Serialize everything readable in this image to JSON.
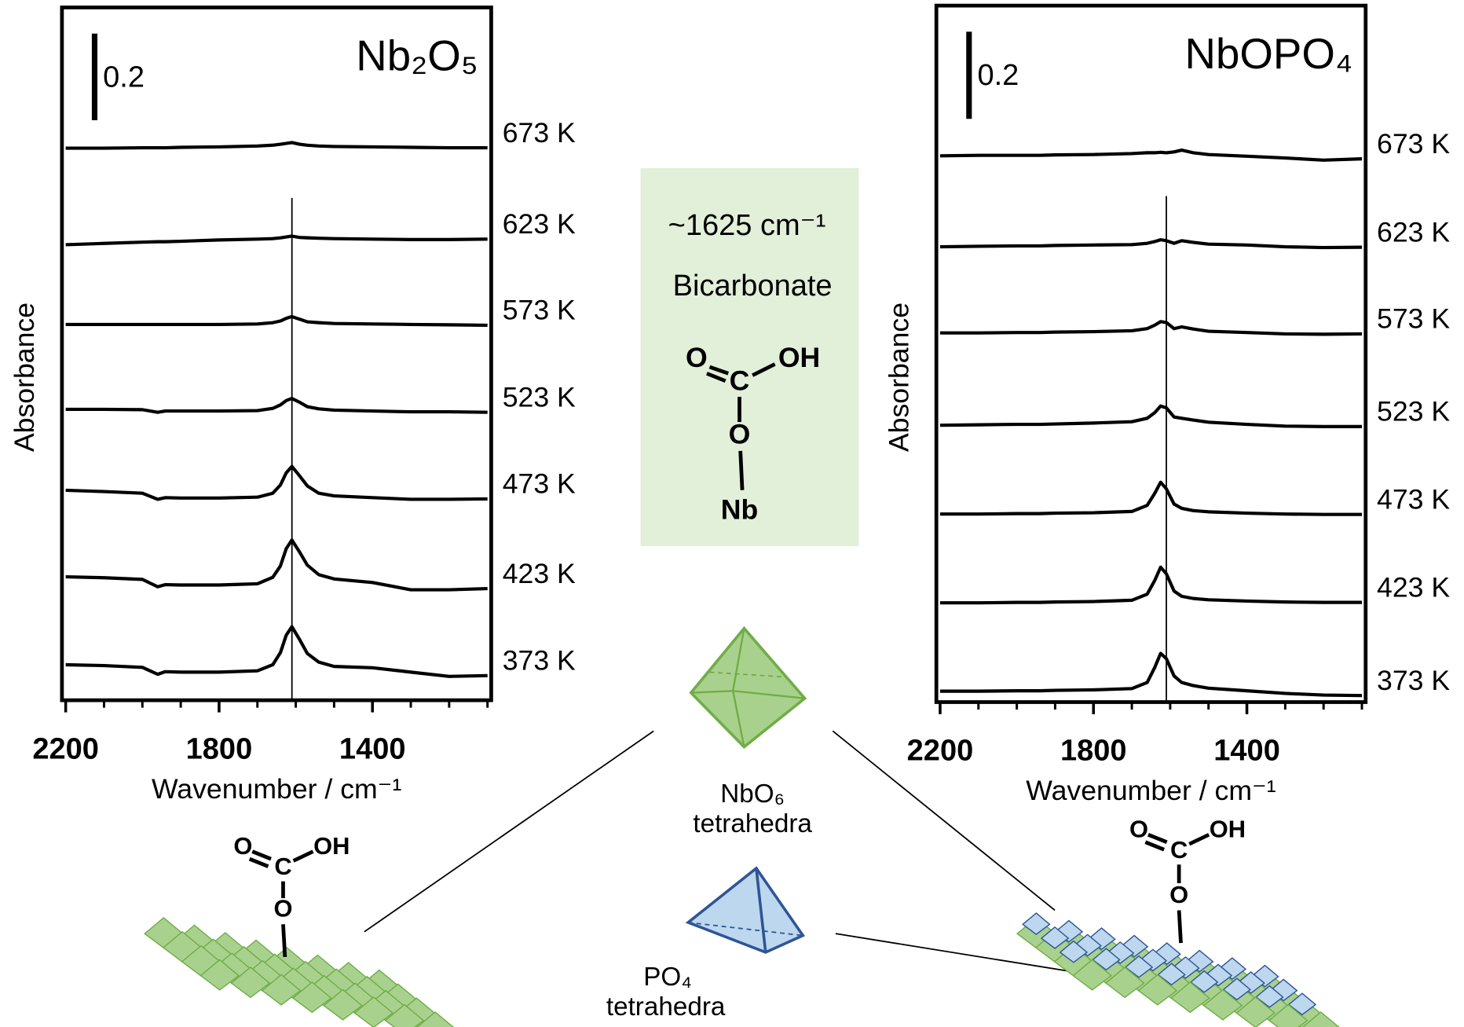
{
  "chart_data": [
    {
      "type": "line",
      "title": "Nb₂O₅",
      "xlabel": "Wavenumber / cm⁻¹",
      "ylabel": "Absorbance",
      "color": "#000000",
      "x": [
        2200,
        2100,
        2000,
        1960,
        1940,
        1900,
        1800,
        1700,
        1660,
        1640,
        1625,
        1610,
        1590,
        1570,
        1540,
        1500,
        1400,
        1300,
        1200,
        1100
      ],
      "series": [
        {
          "name": "673 K",
          "values": [
            1.275,
            1.275,
            1.276,
            1.276,
            1.276,
            1.277,
            1.278,
            1.28,
            1.282,
            1.284,
            1.286,
            1.288,
            1.284,
            1.282,
            1.28,
            1.279,
            1.278,
            1.277,
            1.276,
            1.276
          ]
        },
        {
          "name": "623 K",
          "values": [
            1.052,
            1.055,
            1.058,
            1.059,
            1.059,
            1.06,
            1.063,
            1.065,
            1.066,
            1.068,
            1.07,
            1.072,
            1.069,
            1.068,
            1.067,
            1.066,
            1.065,
            1.064,
            1.064,
            1.065
          ]
        },
        {
          "name": "573 K",
          "values": [
            0.868,
            0.868,
            0.868,
            0.868,
            0.868,
            0.868,
            0.868,
            0.869,
            0.872,
            0.876,
            0.882,
            0.886,
            0.88,
            0.874,
            0.872,
            0.87,
            0.869,
            0.868,
            0.867,
            0.866
          ]
        },
        {
          "name": "523 K",
          "values": [
            0.672,
            0.672,
            0.671,
            0.665,
            0.668,
            0.668,
            0.668,
            0.669,
            0.674,
            0.682,
            0.692,
            0.697,
            0.688,
            0.678,
            0.673,
            0.67,
            0.668,
            0.666,
            0.666,
            0.665
          ]
        },
        {
          "name": "473 K",
          "values": [
            0.485,
            0.482,
            0.478,
            0.464,
            0.468,
            0.467,
            0.467,
            0.469,
            0.478,
            0.497,
            0.525,
            0.54,
            0.518,
            0.495,
            0.478,
            0.472,
            0.468,
            0.464,
            0.464,
            0.465
          ]
        },
        {
          "name": "423 K",
          "values": [
            0.285,
            0.283,
            0.279,
            0.262,
            0.267,
            0.266,
            0.266,
            0.269,
            0.284,
            0.31,
            0.35,
            0.37,
            0.342,
            0.312,
            0.29,
            0.28,
            0.272,
            0.255,
            0.255,
            0.258
          ]
        },
        {
          "name": "373 K",
          "values": [
            0.082,
            0.08,
            0.076,
            0.06,
            0.066,
            0.065,
            0.065,
            0.068,
            0.082,
            0.11,
            0.15,
            0.17,
            0.14,
            0.108,
            0.088,
            0.078,
            0.075,
            0.065,
            0.055,
            0.057
          ]
        }
      ],
      "xlim": [
        2200,
        1100
      ],
      "xticks": [
        2200,
        1800,
        1400
      ],
      "xminorticks": [
        2100,
        2000,
        1900,
        1700,
        1600,
        1500,
        1300,
        1200,
        1100
      ],
      "ylim": [
        0,
        1.6
      ],
      "scalebar": {
        "value": 0.2,
        "label": "0.2"
      },
      "marker_x": 1610
    },
    {
      "type": "line",
      "title": "NbOPO₄",
      "xlabel": "Wavenumber / cm⁻¹",
      "ylabel": "Absorbance",
      "color": "#000000",
      "x": [
        2200,
        2100,
        2000,
        1960,
        1940,
        1900,
        1800,
        1700,
        1660,
        1640,
        1625,
        1610,
        1590,
        1570,
        1540,
        1500,
        1400,
        1300,
        1200,
        1100
      ],
      "series": [
        {
          "name": "673 K",
          "values": [
            1.255,
            1.256,
            1.256,
            1.256,
            1.256,
            1.257,
            1.258,
            1.26,
            1.262,
            1.262,
            1.263,
            1.262,
            1.264,
            1.268,
            1.262,
            1.258,
            1.254,
            1.25,
            1.245,
            1.248
          ]
        },
        {
          "name": "623 K",
          "values": [
            1.046,
            1.047,
            1.048,
            1.048,
            1.048,
            1.049,
            1.05,
            1.051,
            1.054,
            1.058,
            1.062,
            1.06,
            1.054,
            1.06,
            1.056,
            1.052,
            1.05,
            1.046,
            1.044,
            1.045
          ]
        },
        {
          "name": "573 K",
          "values": [
            0.848,
            0.848,
            0.849,
            0.849,
            0.849,
            0.85,
            0.851,
            0.853,
            0.858,
            0.866,
            0.874,
            0.872,
            0.858,
            0.862,
            0.857,
            0.852,
            0.849,
            0.846,
            0.845,
            0.846
          ]
        },
        {
          "name": "523 K",
          "values": [
            0.636,
            0.637,
            0.638,
            0.638,
            0.638,
            0.639,
            0.641,
            0.644,
            0.652,
            0.665,
            0.68,
            0.676,
            0.655,
            0.652,
            0.648,
            0.643,
            0.638,
            0.634,
            0.633,
            0.633
          ]
        },
        {
          "name": "473 K",
          "values": [
            0.432,
            0.432,
            0.433,
            0.433,
            0.433,
            0.434,
            0.435,
            0.438,
            0.452,
            0.48,
            0.505,
            0.49,
            0.455,
            0.445,
            0.44,
            0.437,
            0.434,
            0.432,
            0.431,
            0.431
          ]
        },
        {
          "name": "423 K",
          "values": [
            0.228,
            0.228,
            0.229,
            0.229,
            0.229,
            0.23,
            0.231,
            0.234,
            0.248,
            0.28,
            0.31,
            0.295,
            0.255,
            0.243,
            0.238,
            0.235,
            0.232,
            0.23,
            0.229,
            0.229
          ]
        },
        {
          "name": "373 K",
          "values": [
            0.025,
            0.025,
            0.026,
            0.026,
            0.026,
            0.027,
            0.028,
            0.031,
            0.045,
            0.08,
            0.112,
            0.1,
            0.06,
            0.045,
            0.038,
            0.032,
            0.026,
            0.02,
            0.016,
            0.015
          ]
        }
      ],
      "xlim": [
        2200,
        1100
      ],
      "xticks": [
        2200,
        1800,
        1400
      ],
      "xminorticks": [
        2100,
        2000,
        1900,
        1700,
        1600,
        1500,
        1300,
        1200,
        1100
      ],
      "ylim": [
        0,
        1.6
      ],
      "scalebar": {
        "value": 0.2,
        "label": "0.2"
      },
      "marker_x": 1610
    }
  ],
  "annotations": {
    "box": {
      "band": "~1625 cm⁻¹",
      "name": "Bicarbonate",
      "atoms": [
        "O",
        "C",
        "OH",
        "O",
        "Nb"
      ]
    },
    "surface_left_atoms": [
      "O",
      "C",
      "OH",
      "O"
    ],
    "surface_right_atoms": [
      "O",
      "C",
      "OH",
      "O"
    ],
    "octahedra_label": [
      "NbO₆",
      "tetrahedra"
    ],
    "tetrahedra_label": [
      "PO₄",
      "tetrahedra"
    ]
  }
}
